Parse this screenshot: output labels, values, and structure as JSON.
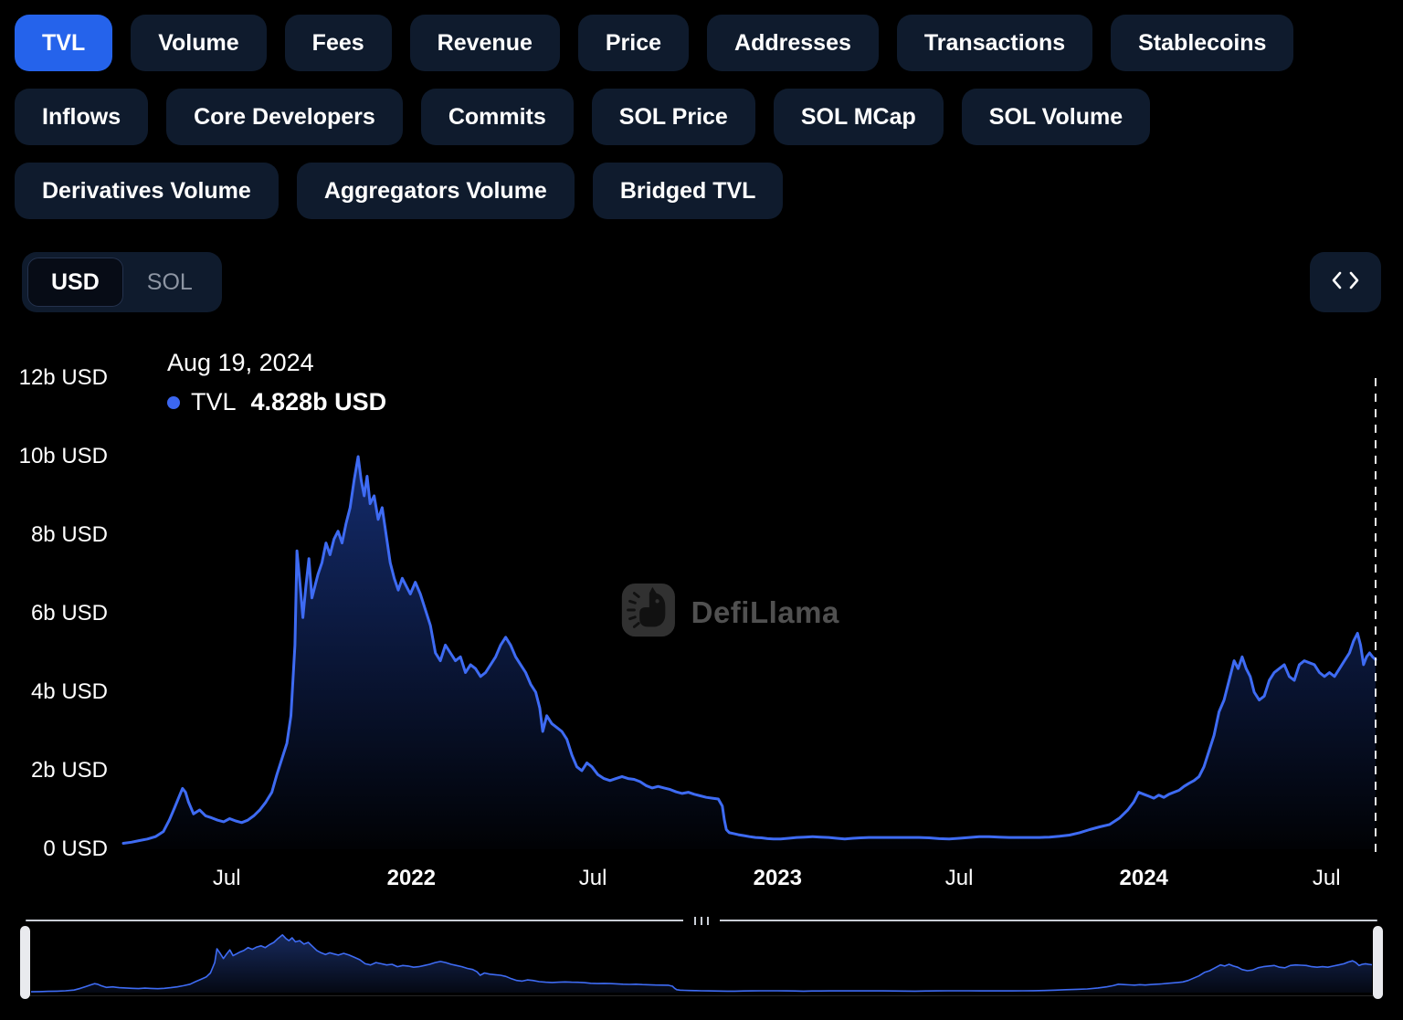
{
  "tabs": {
    "row1": [
      {
        "label": "TVL",
        "active": true
      },
      {
        "label": "Volume",
        "active": false
      },
      {
        "label": "Fees",
        "active": false
      },
      {
        "label": "Revenue",
        "active": false
      },
      {
        "label": "Price",
        "active": false
      },
      {
        "label": "Addresses",
        "active": false
      },
      {
        "label": "Transactions",
        "active": false
      },
      {
        "label": "Stablecoins",
        "active": false
      }
    ],
    "row2": [
      {
        "label": "Inflows",
        "active": false
      },
      {
        "label": "Core Developers",
        "active": false
      },
      {
        "label": "Commits",
        "active": false
      },
      {
        "label": "SOL Price",
        "active": false
      },
      {
        "label": "SOL MCap",
        "active": false
      },
      {
        "label": "SOL Volume",
        "active": false
      }
    ],
    "row3": [
      {
        "label": "Derivatives Volume",
        "active": false
      },
      {
        "label": "Aggregators Volume",
        "active": false
      },
      {
        "label": "Bridged TVL",
        "active": false
      }
    ]
  },
  "currency_toggle": {
    "options": [
      "USD",
      "SOL"
    ],
    "selected": "USD"
  },
  "embed_button": {
    "icon": "code-icon"
  },
  "tooltip": {
    "date": "Aug 19, 2024",
    "series": "TVL",
    "value": "4.828b USD"
  },
  "watermark": {
    "text": "DefiLlama",
    "icon": "defillama-llama-icon"
  },
  "colors": {
    "accent": "#2563eb",
    "line": "#3e6bf3",
    "button_bg": "#0f1b2d",
    "background": "#000000",
    "muted_text": "#8d95a3"
  },
  "chart_data": {
    "type": "area",
    "title": "TVL",
    "unit": "b USD",
    "ylim": [
      0,
      12
    ],
    "x_range": [
      "2021-03-20",
      "2024-08-19"
    ],
    "marker_date": "2024-08-19",
    "legend": [
      {
        "name": "TVL",
        "color": "#3b66f0"
      }
    ],
    "grid": false,
    "y_ticks": [
      {
        "value": 0,
        "label": "0 USD"
      },
      {
        "value": 2,
        "label": "2b USD"
      },
      {
        "value": 4,
        "label": "4b USD"
      },
      {
        "value": 6,
        "label": "6b USD"
      },
      {
        "value": 8,
        "label": "8b USD"
      },
      {
        "value": 10,
        "label": "10b USD"
      },
      {
        "value": 12,
        "label": "12b USD"
      }
    ],
    "x_ticks": [
      {
        "date": "2021-07-01",
        "label": "Jul",
        "bold": false
      },
      {
        "date": "2022-01-01",
        "label": "2022",
        "bold": true
      },
      {
        "date": "2022-07-01",
        "label": "Jul",
        "bold": false
      },
      {
        "date": "2023-01-01",
        "label": "2023",
        "bold": true
      },
      {
        "date": "2023-07-01",
        "label": "Jul",
        "bold": false
      },
      {
        "date": "2024-01-01",
        "label": "2024",
        "bold": true
      },
      {
        "date": "2024-07-01",
        "label": "Jul",
        "bold": false
      }
    ],
    "points": [
      [
        "2021-03-20",
        0.15
      ],
      [
        "2021-03-28",
        0.18
      ],
      [
        "2021-04-05",
        0.22
      ],
      [
        "2021-04-13",
        0.26
      ],
      [
        "2021-04-21",
        0.32
      ],
      [
        "2021-04-29",
        0.45
      ],
      [
        "2021-05-05",
        0.75
      ],
      [
        "2021-05-10",
        1.05
      ],
      [
        "2021-05-14",
        1.3
      ],
      [
        "2021-05-18",
        1.55
      ],
      [
        "2021-05-21",
        1.45
      ],
      [
        "2021-05-24",
        1.2
      ],
      [
        "2021-05-29",
        0.9
      ],
      [
        "2021-06-04",
        1.0
      ],
      [
        "2021-06-10",
        0.85
      ],
      [
        "2021-06-16",
        0.8
      ],
      [
        "2021-06-22",
        0.74
      ],
      [
        "2021-06-28",
        0.7
      ],
      [
        "2021-07-04",
        0.78
      ],
      [
        "2021-07-10",
        0.72
      ],
      [
        "2021-07-16",
        0.68
      ],
      [
        "2021-07-22",
        0.74
      ],
      [
        "2021-07-28",
        0.85
      ],
      [
        "2021-08-03",
        1.0
      ],
      [
        "2021-08-09",
        1.2
      ],
      [
        "2021-08-15",
        1.45
      ],
      [
        "2021-08-20",
        1.9
      ],
      [
        "2021-08-25",
        2.3
      ],
      [
        "2021-08-30",
        2.7
      ],
      [
        "2021-09-03",
        3.4
      ],
      [
        "2021-09-07",
        5.2
      ],
      [
        "2021-09-09",
        7.6
      ],
      [
        "2021-09-12",
        6.8
      ],
      [
        "2021-09-15",
        5.9
      ],
      [
        "2021-09-18",
        6.7
      ],
      [
        "2021-09-21",
        7.4
      ],
      [
        "2021-09-24",
        6.4
      ],
      [
        "2021-09-27",
        6.7
      ],
      [
        "2021-09-30",
        7.0
      ],
      [
        "2021-10-04",
        7.3
      ],
      [
        "2021-10-08",
        7.8
      ],
      [
        "2021-10-12",
        7.5
      ],
      [
        "2021-10-16",
        7.9
      ],
      [
        "2021-10-20",
        8.1
      ],
      [
        "2021-10-24",
        7.8
      ],
      [
        "2021-10-28",
        8.3
      ],
      [
        "2021-11-01",
        8.7
      ],
      [
        "2021-11-05",
        9.4
      ],
      [
        "2021-11-09",
        10.0
      ],
      [
        "2021-11-12",
        9.4
      ],
      [
        "2021-11-15",
        9.0
      ],
      [
        "2021-11-18",
        9.5
      ],
      [
        "2021-11-21",
        8.8
      ],
      [
        "2021-11-25",
        9.0
      ],
      [
        "2021-11-29",
        8.4
      ],
      [
        "2021-12-03",
        8.7
      ],
      [
        "2021-12-07",
        8.0
      ],
      [
        "2021-12-11",
        7.3
      ],
      [
        "2021-12-15",
        6.9
      ],
      [
        "2021-12-19",
        6.6
      ],
      [
        "2021-12-23",
        6.9
      ],
      [
        "2021-12-27",
        6.7
      ],
      [
        "2021-12-31",
        6.5
      ],
      [
        "2022-01-05",
        6.8
      ],
      [
        "2022-01-10",
        6.5
      ],
      [
        "2022-01-15",
        6.1
      ],
      [
        "2022-01-20",
        5.7
      ],
      [
        "2022-01-25",
        5.0
      ],
      [
        "2022-01-30",
        4.8
      ],
      [
        "2022-02-04",
        5.2
      ],
      [
        "2022-02-09",
        5.0
      ],
      [
        "2022-02-14",
        4.8
      ],
      [
        "2022-02-19",
        4.9
      ],
      [
        "2022-02-24",
        4.5
      ],
      [
        "2022-03-01",
        4.7
      ],
      [
        "2022-03-06",
        4.6
      ],
      [
        "2022-03-11",
        4.4
      ],
      [
        "2022-03-16",
        4.5
      ],
      [
        "2022-03-21",
        4.7
      ],
      [
        "2022-03-26",
        4.9
      ],
      [
        "2022-03-31",
        5.2
      ],
      [
        "2022-04-05",
        5.4
      ],
      [
        "2022-04-10",
        5.2
      ],
      [
        "2022-04-15",
        4.9
      ],
      [
        "2022-04-20",
        4.7
      ],
      [
        "2022-04-25",
        4.5
      ],
      [
        "2022-04-30",
        4.2
      ],
      [
        "2022-05-05",
        4.0
      ],
      [
        "2022-05-09",
        3.6
      ],
      [
        "2022-05-12",
        3.0
      ],
      [
        "2022-05-16",
        3.4
      ],
      [
        "2022-05-21",
        3.2
      ],
      [
        "2022-05-26",
        3.1
      ],
      [
        "2022-05-31",
        3.0
      ],
      [
        "2022-06-05",
        2.8
      ],
      [
        "2022-06-10",
        2.4
      ],
      [
        "2022-06-15",
        2.1
      ],
      [
        "2022-06-20",
        2.0
      ],
      [
        "2022-06-25",
        2.2
      ],
      [
        "2022-06-30",
        2.1
      ],
      [
        "2022-07-06",
        1.9
      ],
      [
        "2022-07-12",
        1.8
      ],
      [
        "2022-07-18",
        1.75
      ],
      [
        "2022-07-24",
        1.8
      ],
      [
        "2022-07-30",
        1.85
      ],
      [
        "2022-08-05",
        1.8
      ],
      [
        "2022-08-11",
        1.78
      ],
      [
        "2022-08-17",
        1.72
      ],
      [
        "2022-08-23",
        1.62
      ],
      [
        "2022-08-29",
        1.56
      ],
      [
        "2022-09-04",
        1.6
      ],
      [
        "2022-09-10",
        1.56
      ],
      [
        "2022-09-16",
        1.52
      ],
      [
        "2022-09-22",
        1.46
      ],
      [
        "2022-09-28",
        1.42
      ],
      [
        "2022-10-04",
        1.45
      ],
      [
        "2022-10-10",
        1.4
      ],
      [
        "2022-10-16",
        1.36
      ],
      [
        "2022-10-22",
        1.32
      ],
      [
        "2022-10-28",
        1.3
      ],
      [
        "2022-11-03",
        1.28
      ],
      [
        "2022-11-07",
        1.1
      ],
      [
        "2022-11-09",
        0.75
      ],
      [
        "2022-11-11",
        0.5
      ],
      [
        "2022-11-14",
        0.42
      ],
      [
        "2022-11-18",
        0.4
      ],
      [
        "2022-11-23",
        0.37
      ],
      [
        "2022-11-28",
        0.35
      ],
      [
        "2022-12-04",
        0.32
      ],
      [
        "2022-12-10",
        0.3
      ],
      [
        "2022-12-16",
        0.29
      ],
      [
        "2022-12-22",
        0.27
      ],
      [
        "2022-12-28",
        0.26
      ],
      [
        "2023-01-04",
        0.26
      ],
      [
        "2023-01-12",
        0.28
      ],
      [
        "2023-01-20",
        0.3
      ],
      [
        "2023-01-28",
        0.31
      ],
      [
        "2023-02-05",
        0.32
      ],
      [
        "2023-02-13",
        0.31
      ],
      [
        "2023-02-21",
        0.3
      ],
      [
        "2023-03-01",
        0.28
      ],
      [
        "2023-03-09",
        0.26
      ],
      [
        "2023-03-17",
        0.28
      ],
      [
        "2023-03-25",
        0.29
      ],
      [
        "2023-04-02",
        0.3
      ],
      [
        "2023-04-12",
        0.3
      ],
      [
        "2023-04-22",
        0.3
      ],
      [
        "2023-05-02",
        0.3
      ],
      [
        "2023-05-12",
        0.3
      ],
      [
        "2023-05-22",
        0.3
      ],
      [
        "2023-06-01",
        0.29
      ],
      [
        "2023-06-11",
        0.27
      ],
      [
        "2023-06-21",
        0.26
      ],
      [
        "2023-07-01",
        0.28
      ],
      [
        "2023-07-11",
        0.3
      ],
      [
        "2023-07-21",
        0.32
      ],
      [
        "2023-07-31",
        0.32
      ],
      [
        "2023-08-10",
        0.31
      ],
      [
        "2023-08-20",
        0.3
      ],
      [
        "2023-08-30",
        0.3
      ],
      [
        "2023-09-09",
        0.3
      ],
      [
        "2023-09-19",
        0.3
      ],
      [
        "2023-09-29",
        0.31
      ],
      [
        "2023-10-09",
        0.33
      ],
      [
        "2023-10-19",
        0.36
      ],
      [
        "2023-10-29",
        0.42
      ],
      [
        "2023-11-08",
        0.5
      ],
      [
        "2023-11-18",
        0.57
      ],
      [
        "2023-11-28",
        0.63
      ],
      [
        "2023-12-08",
        0.8
      ],
      [
        "2023-12-16",
        1.0
      ],
      [
        "2023-12-22",
        1.2
      ],
      [
        "2023-12-27",
        1.45
      ],
      [
        "2024-01-01",
        1.4
      ],
      [
        "2024-01-06",
        1.35
      ],
      [
        "2024-01-11",
        1.3
      ],
      [
        "2024-01-16",
        1.38
      ],
      [
        "2024-01-21",
        1.32
      ],
      [
        "2024-01-26",
        1.4
      ],
      [
        "2024-01-31",
        1.45
      ],
      [
        "2024-02-05",
        1.5
      ],
      [
        "2024-02-10",
        1.6
      ],
      [
        "2024-02-15",
        1.68
      ],
      [
        "2024-02-20",
        1.75
      ],
      [
        "2024-02-25",
        1.85
      ],
      [
        "2024-03-01",
        2.1
      ],
      [
        "2024-03-06",
        2.5
      ],
      [
        "2024-03-11",
        2.9
      ],
      [
        "2024-03-16",
        3.5
      ],
      [
        "2024-03-21",
        3.8
      ],
      [
        "2024-03-26",
        4.3
      ],
      [
        "2024-03-31",
        4.8
      ],
      [
        "2024-04-04",
        4.6
      ],
      [
        "2024-04-08",
        4.9
      ],
      [
        "2024-04-12",
        4.6
      ],
      [
        "2024-04-16",
        4.4
      ],
      [
        "2024-04-20",
        4.0
      ],
      [
        "2024-04-25",
        3.8
      ],
      [
        "2024-04-30",
        3.9
      ],
      [
        "2024-05-05",
        4.3
      ],
      [
        "2024-05-10",
        4.5
      ],
      [
        "2024-05-15",
        4.6
      ],
      [
        "2024-05-20",
        4.7
      ],
      [
        "2024-05-25",
        4.4
      ],
      [
        "2024-05-30",
        4.3
      ],
      [
        "2024-06-04",
        4.7
      ],
      [
        "2024-06-09",
        4.8
      ],
      [
        "2024-06-14",
        4.75
      ],
      [
        "2024-06-19",
        4.7
      ],
      [
        "2024-06-24",
        4.5
      ],
      [
        "2024-06-29",
        4.4
      ],
      [
        "2024-07-04",
        4.5
      ],
      [
        "2024-07-09",
        4.4
      ],
      [
        "2024-07-14",
        4.6
      ],
      [
        "2024-07-19",
        4.8
      ],
      [
        "2024-07-24",
        5.0
      ],
      [
        "2024-07-28",
        5.3
      ],
      [
        "2024-08-01",
        5.5
      ],
      [
        "2024-08-04",
        5.2
      ],
      [
        "2024-08-07",
        4.7
      ],
      [
        "2024-08-10",
        4.9
      ],
      [
        "2024-08-13",
        5.0
      ],
      [
        "2024-08-16",
        4.9
      ],
      [
        "2024-08-19",
        4.828
      ]
    ]
  }
}
